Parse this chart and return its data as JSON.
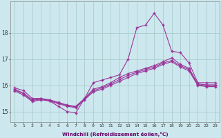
{
  "background_color": "#cce8ee",
  "grid_color": "#aacccc",
  "line_color": "#993399",
  "hours": [
    0,
    1,
    2,
    3,
    4,
    5,
    6,
    7,
    8,
    9,
    10,
    11,
    12,
    13,
    14,
    15,
    16,
    17,
    18,
    19,
    20,
    21,
    22,
    23
  ],
  "line1": [
    15.9,
    15.8,
    15.5,
    15.5,
    15.4,
    15.2,
    15.0,
    14.95,
    15.5,
    16.1,
    16.2,
    16.3,
    16.4,
    17.0,
    18.2,
    18.3,
    18.75,
    18.3,
    17.3,
    17.25,
    16.85,
    16.1,
    16.1,
    16.1
  ],
  "line2": [
    15.85,
    15.7,
    15.45,
    15.5,
    15.45,
    15.35,
    15.25,
    15.2,
    15.5,
    15.85,
    15.95,
    16.1,
    16.3,
    16.45,
    16.55,
    16.65,
    16.75,
    16.9,
    17.05,
    16.8,
    16.65,
    16.05,
    16.02,
    16.02
  ],
  "line3": [
    15.82,
    15.68,
    15.42,
    15.48,
    15.43,
    15.33,
    15.23,
    15.18,
    15.48,
    15.8,
    15.9,
    16.05,
    16.22,
    16.38,
    16.5,
    16.6,
    16.7,
    16.85,
    16.95,
    16.75,
    16.6,
    16.02,
    15.98,
    15.98
  ],
  "line4": [
    15.78,
    15.63,
    15.38,
    15.45,
    15.4,
    15.3,
    15.2,
    15.15,
    15.45,
    15.75,
    15.85,
    16.0,
    16.15,
    16.3,
    16.45,
    16.55,
    16.65,
    16.8,
    16.9,
    16.7,
    16.55,
    16.0,
    15.95,
    15.95
  ],
  "ylim": [
    14.6,
    19.2
  ],
  "yticks": [
    15,
    16,
    17,
    18
  ],
  "xlabel": "Windchill (Refroidissement éolien,°C)"
}
